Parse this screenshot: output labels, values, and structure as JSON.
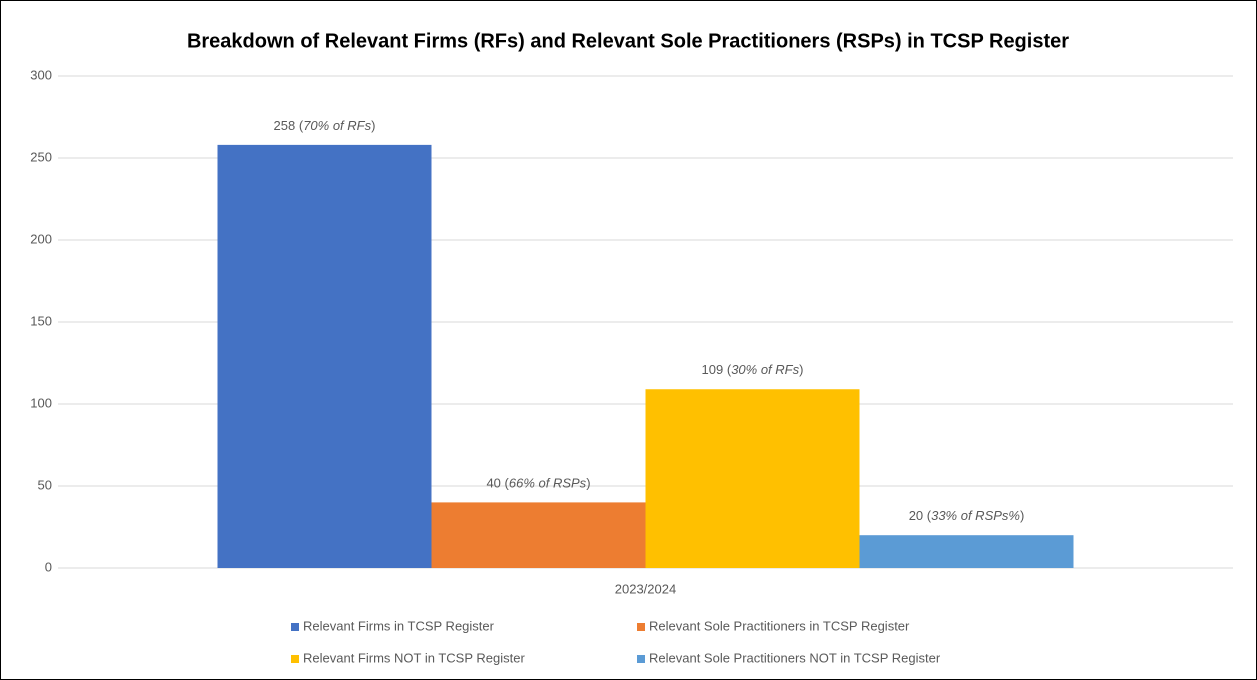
{
  "chart_data": {
    "type": "bar",
    "title": "Breakdown of Relevant Firms (RFs) and Relevant Sole Practitioners (RSPs) in TCSP Register",
    "categories": [
      "2023/2024"
    ],
    "series": [
      {
        "name": "Relevant Firms in TCSP Register",
        "color": "#4472c4",
        "values": [
          258
        ],
        "value_labels": [
          "258 (70% of RFs)"
        ]
      },
      {
        "name": "Relevant Sole Practitioners in TCSP Register",
        "color": "#ed7d31",
        "values": [
          40
        ],
        "value_labels": [
          "40 (66% of RSPs)"
        ]
      },
      {
        "name": "Relevant Firms NOT in TCSP Register",
        "color": "#ffc000",
        "values": [
          109
        ],
        "value_labels": [
          "109 (30% of RFs)"
        ]
      },
      {
        "name": "Relevant Sole Practitioners NOT in TCSP Register",
        "color": "#5b9bd5",
        "values": [
          20
        ],
        "value_labels": [
          "20 (33% of RSPs%)"
        ]
      }
    ],
    "ylim": [
      0,
      300
    ],
    "yticks": [
      0,
      50,
      100,
      150,
      200,
      250,
      300
    ],
    "grid": true,
    "legend": "bottom"
  }
}
